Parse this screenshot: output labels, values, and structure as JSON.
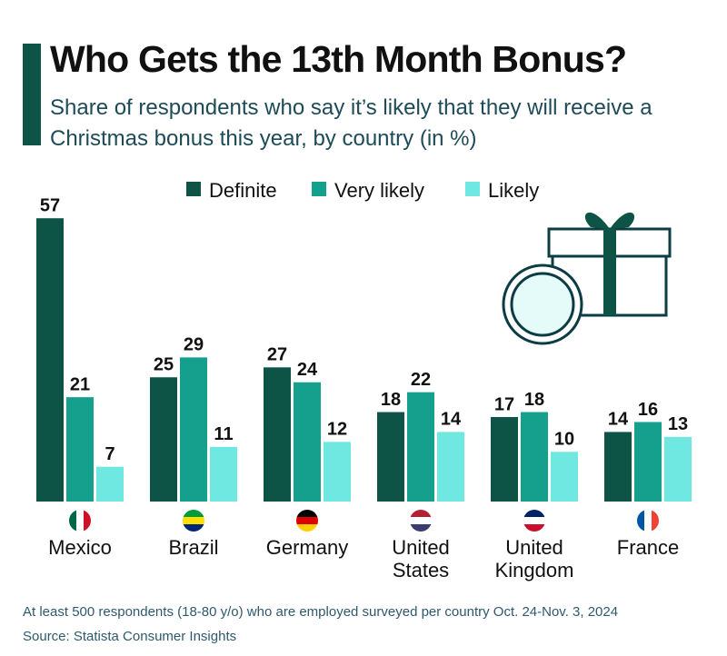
{
  "chart_data": {
    "type": "bar",
    "title": "Who Gets the 13th Month Bonus?",
    "subtitle": "Share of respondents who say it’s likely that they will receive a Christmas bonus this year, by country (in %)",
    "categories": [
      "Mexico",
      "Brazil",
      "Germany",
      "United States",
      "United Kingdom",
      "France"
    ],
    "series": [
      {
        "name": "Definite",
        "color": "#0d5446",
        "values": [
          57,
          25,
          27,
          18,
          17,
          14
        ]
      },
      {
        "name": "Very likely",
        "color": "#14a08d",
        "values": [
          21,
          29,
          24,
          22,
          18,
          16
        ]
      },
      {
        "name": "Likely",
        "color": "#6ee8e0",
        "values": [
          7,
          11,
          12,
          14,
          10,
          13
        ]
      }
    ],
    "notes": [
      "At least 500 respondents (18-80 y/o) who are employed surveyed per country Oct. 24-Nov. 3, 2024",
      "Source: Statista Consumer Insights"
    ]
  }
}
